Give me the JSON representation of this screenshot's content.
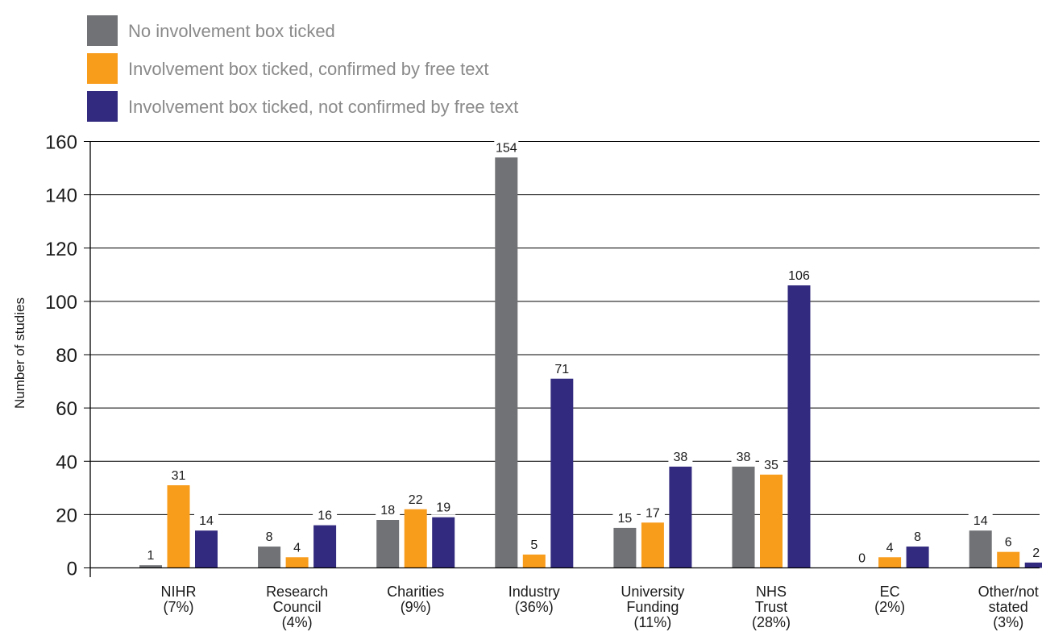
{
  "chart_data": {
    "type": "bar",
    "title": "",
    "xlabel": "",
    "ylabel": "Number of studies",
    "ylim": [
      0,
      160
    ],
    "yticks": [
      0,
      20,
      40,
      60,
      80,
      100,
      120,
      140,
      160
    ],
    "grid": "horizontal",
    "legend_position": "top-left",
    "categories": [
      [
        "NIHR",
        "(7%)"
      ],
      [
        "Research",
        "Council",
        "(4%)"
      ],
      [
        "Charities",
        "(9%)"
      ],
      [
        "Industry",
        "(36%)"
      ],
      [
        "University",
        "Funding",
        "(11%)"
      ],
      [
        "NHS",
        "Trust",
        "(28%)"
      ],
      [
        "EC",
        "(2%)"
      ],
      [
        "Other/not",
        "stated",
        "(3%)"
      ]
    ],
    "series": [
      {
        "name": "No involvement box ticked",
        "color": "#707275",
        "values": [
          1,
          8,
          18,
          154,
          15,
          38,
          0,
          14
        ]
      },
      {
        "name": "Involvement box ticked, confirmed by free text",
        "color": "#F89C1C",
        "values": [
          31,
          4,
          22,
          5,
          17,
          35,
          4,
          6
        ]
      },
      {
        "name": "Involvement box ticked, not confirmed by free text",
        "color": "#322A7E",
        "values": [
          14,
          16,
          19,
          71,
          38,
          106,
          8,
          2
        ]
      }
    ]
  }
}
